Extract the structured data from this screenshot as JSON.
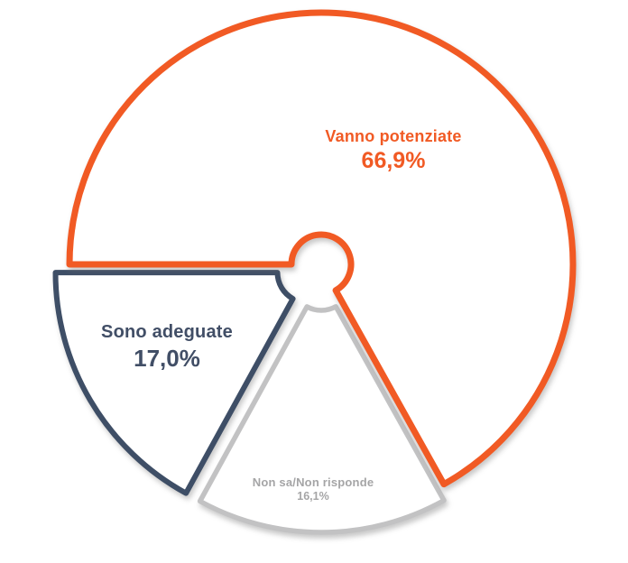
{
  "chart_data": {
    "type": "pie",
    "style": "outlined-donut-exploded",
    "title": "",
    "start_angle_deg": 180,
    "direction": "clockwise",
    "background": "#ffffff",
    "slices": [
      {
        "label": "Vanno potenziate",
        "value": 66.9,
        "value_display": "66,9%",
        "color": "#F15A24",
        "label_color": "#F15A24",
        "exploded": false
      },
      {
        "label": "Non sa/Non risponde",
        "value": 16.1,
        "value_display": "16,1%",
        "color": "#C2C2C3",
        "label_color": "#A5A5A6",
        "exploded": true
      },
      {
        "label": "Sono adeguate",
        "value": 17.0,
        "value_display": "17,0%",
        "color": "#3E4E66",
        "label_color": "#414E66",
        "exploded": true
      }
    ]
  }
}
